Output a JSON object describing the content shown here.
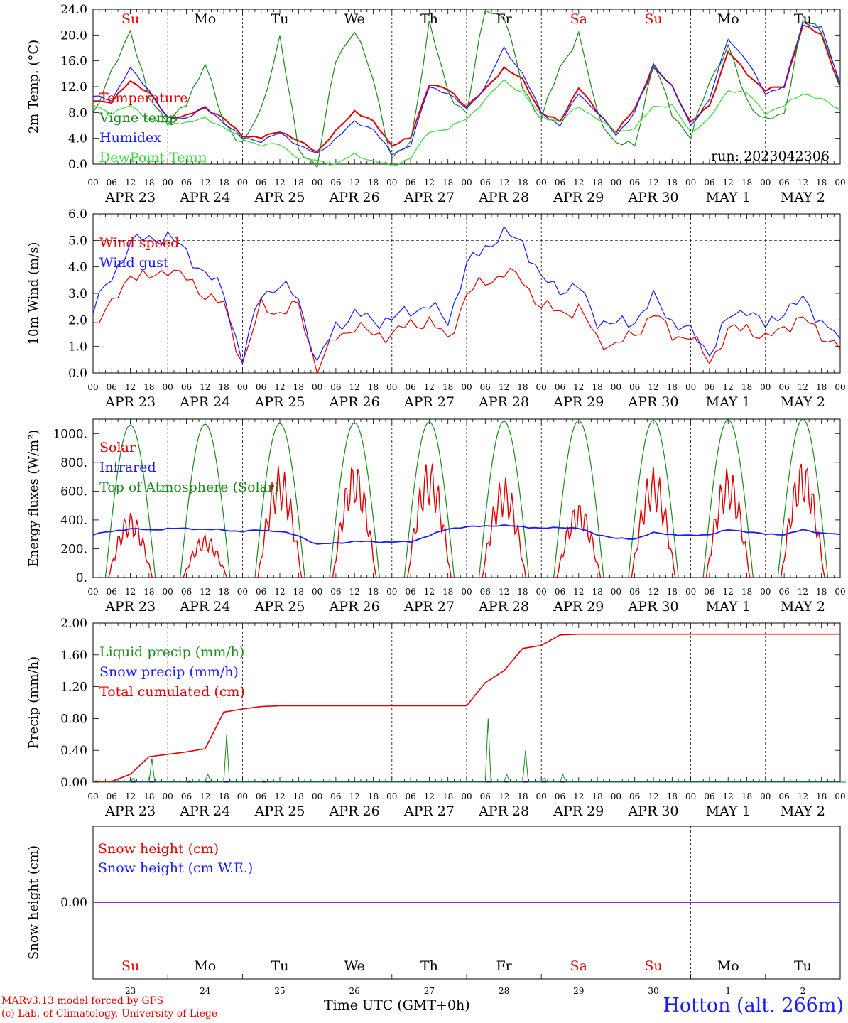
{
  "footer": {
    "credit_1": "MARv3.13 model forced by GFS",
    "credit_2": "(c) Lab. of Climatology, University of Liege",
    "time_label": "Time UTC (GMT+0h)",
    "station": "Hotton (alt. 266m)"
  },
  "colors": {
    "red": "#e00000",
    "green": "#1a8a1a",
    "blue": "#1a1aff",
    "lime": "#33dd33",
    "purple": "#8a2be2"
  },
  "chart_data": [
    {
      "type": "line",
      "id": "temperature",
      "ylabel": "2m Temp. (°C)",
      "ylim": [
        0,
        24
      ],
      "yticks": [
        "0.0",
        "4.0",
        "8.0",
        "12.0",
        "16.0",
        "20.0",
        "24.0"
      ],
      "annotation": "run: 2023042306",
      "day_labels": [
        {
          "label": "Su",
          "color": "red"
        },
        {
          "label": "Mo",
          "color": "black"
        },
        {
          "label": "Tu",
          "color": "black"
        },
        {
          "label": "We",
          "color": "black"
        },
        {
          "label": "Th",
          "color": "black"
        },
        {
          "label": "Fr",
          "color": "black"
        },
        {
          "label": "Sa",
          "color": "red"
        },
        {
          "label": "Su",
          "color": "red"
        },
        {
          "label": "Mo",
          "color": "black"
        },
        {
          "label": "Tu",
          "color": "black"
        }
      ],
      "x_hours": [
        0,
        6,
        12,
        18,
        24,
        30,
        36,
        42,
        48,
        54,
        60,
        66,
        72,
        78,
        84,
        90,
        96,
        102,
        108,
        114,
        120,
        126,
        132,
        138,
        144,
        150,
        156,
        162,
        168,
        174,
        180,
        186,
        192,
        198,
        204,
        210,
        216,
        222,
        228,
        234,
        240
      ],
      "series": [
        {
          "name": "Temperature",
          "color": "red",
          "values": [
            10,
            9.5,
            13,
            11,
            7.3,
            7.4,
            8.8,
            7,
            4.5,
            4,
            5.2,
            3.5,
            2,
            5,
            8.3,
            6.5,
            3,
            4,
            12.5,
            11.5,
            9,
            11.5,
            15,
            13,
            8,
            6.5,
            12,
            8,
            5,
            8.5,
            15,
            12,
            6.5,
            9,
            17.5,
            14,
            11.5,
            12,
            21.5,
            20,
            12
          ]
        },
        {
          "name": "Vigne temp",
          "color": "green",
          "values": [
            8,
            14,
            21,
            10,
            6.8,
            9,
            16,
            6,
            3.5,
            8,
            20,
            2,
            0,
            16,
            21,
            13,
            1,
            3,
            22,
            11,
            8,
            24,
            23,
            12,
            7,
            15,
            20,
            8,
            3,
            3,
            15.5,
            8,
            4,
            13,
            18,
            10,
            6.5,
            8,
            22,
            21,
            12
          ]
        },
        {
          "name": "Humidex",
          "color": "blue",
          "values": [
            10.5,
            10,
            14.8,
            11.5,
            7,
            7.2,
            8.8,
            6.5,
            4,
            3.6,
            4.8,
            3,
            1.5,
            4,
            6.5,
            5.5,
            1.5,
            3,
            12,
            11,
            8.5,
            12,
            18,
            14,
            8,
            6,
            11,
            8,
            4.5,
            8,
            15.5,
            12,
            6,
            10,
            19.5,
            16,
            11,
            12,
            22,
            21,
            12.5
          ]
        },
        {
          "name": "DewPoint Temp",
          "color": "lime",
          "values": [
            9,
            8,
            9,
            7,
            6.3,
            6.5,
            7,
            5.8,
            3.8,
            3,
            3,
            1,
            0.5,
            0,
            1.5,
            0.5,
            -0.3,
            1,
            5,
            5.5,
            7,
            10,
            13,
            11,
            7.5,
            6.5,
            9,
            7,
            5,
            5.5,
            9,
            9,
            5,
            7,
            11.5,
            11,
            8,
            9,
            11,
            10,
            8.5
          ]
        }
      ],
      "legend": [
        "Temperature",
        "Vigne temp",
        "Humidex",
        "DewPoint Temp"
      ]
    },
    {
      "type": "line",
      "id": "wind",
      "ylabel": "10m Wind (m/s)",
      "ylim": [
        0,
        6
      ],
      "yticks": [
        "0.0",
        "1.0",
        "2.0",
        "3.0",
        "4.0",
        "5.0",
        "6.0"
      ],
      "x_hours": [
        0,
        6,
        12,
        18,
        24,
        30,
        36,
        42,
        48,
        54,
        60,
        66,
        72,
        78,
        84,
        90,
        96,
        102,
        108,
        114,
        120,
        126,
        132,
        138,
        144,
        150,
        156,
        162,
        168,
        174,
        180,
        186,
        192,
        198,
        204,
        210,
        216,
        222,
        228,
        234,
        240
      ],
      "series": [
        {
          "name": "Wind speed",
          "color": "red",
          "values": [
            1.9,
            2.5,
            3.8,
            3.5,
            4,
            3.5,
            3,
            2.5,
            0.4,
            2.5,
            2.3,
            2.5,
            0.2,
            1.3,
            1.8,
            1.4,
            1.5,
            1.8,
            2,
            1.2,
            3,
            3.4,
            3.8,
            3.5,
            2.5,
            2.3,
            2.4,
            1.3,
            1,
            1.5,
            2.2,
            1.5,
            1.3,
            0.5,
            1.5,
            1.8,
            1.2,
            1.8,
            2,
            1.5,
            0.9
          ]
        },
        {
          "name": "Wind gust",
          "color": "blue",
          "values": [
            2.5,
            3.5,
            5,
            5,
            5.2,
            4.5,
            3.8,
            3,
            0.5,
            3,
            3.3,
            2.8,
            0.3,
            1.8,
            2.2,
            2,
            2,
            2.4,
            2.5,
            2,
            4,
            4.8,
            5.2,
            5,
            3.5,
            3.2,
            3.2,
            2,
            1.8,
            2,
            2.8,
            2,
            1.5,
            0.8,
            2,
            2.5,
            1.7,
            2.4,
            2.7,
            2,
            1.3
          ]
        }
      ],
      "legend": [
        "Wind speed",
        "Wind gust"
      ]
    },
    {
      "type": "line",
      "id": "energy",
      "ylabel": "Energy fluxes (W/m²)",
      "ylim": [
        0,
        1100
      ],
      "yticks": [
        "0.",
        "200.",
        "400.",
        "600.",
        "800.",
        "1000."
      ],
      "days": [
        {
          "toa": 1060,
          "solar": 460
        },
        {
          "toa": 1065,
          "solar": 300
        },
        {
          "toa": 1070,
          "solar": 780
        },
        {
          "toa": 1075,
          "solar": 810
        },
        {
          "toa": 1080,
          "solar": 820
        },
        {
          "toa": 1085,
          "solar": 700
        },
        {
          "toa": 1090,
          "solar": 530
        },
        {
          "toa": 1093,
          "solar": 770
        },
        {
          "toa": 1096,
          "solar": 770
        },
        {
          "toa": 1100,
          "solar": 830
        }
      ],
      "infrared_values": [
        300,
        320,
        340,
        330,
        340,
        340,
        335,
        330,
        320,
        330,
        320,
        290,
        230,
        240,
        250,
        250,
        245,
        250,
        290,
        340,
        350,
        360,
        360,
        355,
        340,
        350,
        340,
        300,
        270,
        270,
        310,
        300,
        290,
        300,
        330,
        320,
        300,
        300,
        330,
        310,
        300
      ],
      "legend": [
        {
          "name": "Solar",
          "color": "red"
        },
        {
          "name": "Infrared",
          "color": "blue"
        },
        {
          "name": "Top of Atmosphere (Solar)",
          "color": "green"
        }
      ]
    },
    {
      "type": "line",
      "id": "precip",
      "ylabel": "Precip (mm/h)",
      "ylim": [
        0,
        2
      ],
      "yticks": [
        "0.00",
        "0.40",
        "0.80",
        "1.20",
        "1.60",
        "2.00"
      ],
      "x_hours": [
        0,
        6,
        12,
        18,
        24,
        30,
        36,
        42,
        48,
        54,
        60,
        66,
        72,
        78,
        84,
        90,
        96,
        102,
        108,
        114,
        120,
        126,
        132,
        138,
        144,
        150,
        156,
        162,
        168,
        174,
        180,
        186,
        192,
        198,
        204,
        210,
        216,
        222,
        228,
        234,
        240
      ],
      "series": [
        {
          "name": "Liquid precip (mm/h)",
          "color": "green",
          "values": [
            0.02,
            0,
            0.05,
            0.3,
            0,
            0.02,
            0.1,
            0.6,
            0,
            0.02,
            0,
            0,
            0,
            0,
            0,
            0,
            0,
            0,
            0,
            0,
            0,
            0.8,
            0.1,
            0.4,
            0.05,
            0.1,
            0,
            0,
            0,
            0,
            0,
            0,
            0,
            0,
            0,
            0,
            0,
            0,
            0,
            0,
            0
          ]
        },
        {
          "name": "Total cumulated (cm)",
          "color": "red",
          "values": [
            0.01,
            0.01,
            0.1,
            0.32,
            0.35,
            0.38,
            0.42,
            0.88,
            0.92,
            0.95,
            0.96,
            0.96,
            0.96,
            0.96,
            0.96,
            0.96,
            0.96,
            0.96,
            0.96,
            0.96,
            0.96,
            1.25,
            1.4,
            1.68,
            1.72,
            1.85,
            1.86,
            1.86,
            1.86,
            1.86,
            1.86,
            1.86,
            1.86,
            1.86,
            1.86,
            1.86,
            1.86,
            1.86,
            1.86,
            1.86,
            1.86
          ]
        }
      ],
      "legend": [
        {
          "name": "Liquid precip (mm/h)",
          "color": "green"
        },
        {
          "name": "Snow precip (mm/h)",
          "color": "blue"
        },
        {
          "name": "Total cumulated (cm)",
          "color": "red"
        }
      ]
    },
    {
      "type": "line",
      "id": "snow",
      "ylabel": "Snow height (cm)",
      "ytick": "0.00",
      "series": [
        {
          "name": "Snow height (cm)",
          "color": "red",
          "values": [
            0,
            0
          ]
        },
        {
          "name": "Snow height (cm W.E.)",
          "color": "blue",
          "values": [
            0,
            0
          ]
        }
      ],
      "legend": [
        {
          "name": "Snow height (cm)",
          "color": "red"
        },
        {
          "name": "Snow height (cm W.E.)",
          "color": "blue"
        }
      ],
      "day_labels": [
        {
          "label": "Su",
          "color": "red"
        },
        {
          "label": "Mo",
          "color": "black"
        },
        {
          "label": "Tu",
          "color": "black"
        },
        {
          "label": "We",
          "color": "black"
        },
        {
          "label": "Th",
          "color": "black"
        },
        {
          "label": "Fr",
          "color": "black"
        },
        {
          "label": "Sa",
          "color": "red"
        },
        {
          "label": "Su",
          "color": "red"
        },
        {
          "label": "Mo",
          "color": "black"
        },
        {
          "label": "Tu",
          "color": "black"
        }
      ],
      "day_numbers": [
        "23",
        "24",
        "25",
        "26",
        "27",
        "28",
        "29",
        "30",
        "1",
        "2"
      ]
    }
  ],
  "axis": {
    "hour_ticks": [
      "00",
      "06",
      "12",
      "18"
    ],
    "end_tick": "00",
    "dates": [
      "APR 23",
      "APR 24",
      "APR 25",
      "APR 26",
      "APR 27",
      "APR 28",
      "APR 29",
      "APR 30",
      "MAY  1",
      "MAY  2"
    ]
  }
}
